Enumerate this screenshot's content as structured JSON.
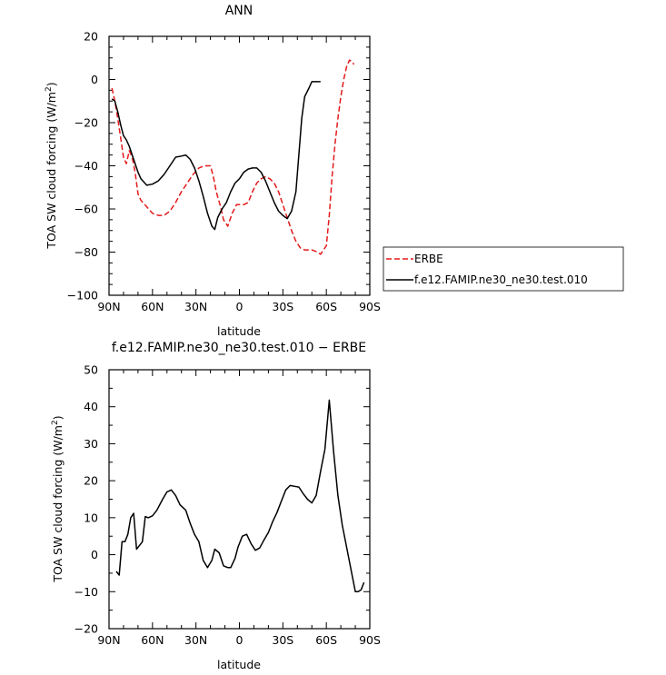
{
  "chart_data": [
    {
      "type": "line",
      "title": "ANN",
      "xlabel": "latitude",
      "ylabel": "TOA SW cloud forcing (W/m",
      "ylabel_sup": "2",
      "ylabel_end": ")",
      "xlim": [
        90,
        -90
      ],
      "ylim": [
        -100,
        20
      ],
      "xticks": [
        90,
        60,
        30,
        0,
        -30,
        -60,
        -90
      ],
      "xtick_labels": [
        "90N",
        "60N",
        "30N",
        "0",
        "30S",
        "60S",
        "90S"
      ],
      "yticks": [
        -100,
        -80,
        -60,
        -40,
        -20,
        0,
        20
      ],
      "ytick_labels": [
        "−100",
        "−80",
        "−60",
        "−40",
        "−20",
        "0",
        "20"
      ],
      "legend": {
        "placement": "right"
      },
      "series": [
        {
          "name": "ERBE",
          "color": "#e31a1c",
          "dash": "dashed",
          "points": [
            [
              88,
              -4
            ],
            [
              86,
              -10
            ],
            [
              84,
              -18
            ],
            [
              82,
              -27
            ],
            [
              80,
              -36
            ],
            [
              78,
              -39
            ],
            [
              76,
              -33
            ],
            [
              74,
              -36
            ],
            [
              72,
              -43
            ],
            [
              70,
              -53
            ],
            [
              68,
              -56
            ],
            [
              64,
              -59
            ],
            [
              60,
              -62
            ],
            [
              56,
              -63
            ],
            [
              52,
              -63
            ],
            [
              48,
              -61
            ],
            [
              44,
              -57
            ],
            [
              40,
              -52
            ],
            [
              36,
              -48
            ],
            [
              32,
              -44
            ],
            [
              28,
              -41
            ],
            [
              24,
              -40
            ],
            [
              20,
              -40
            ],
            [
              18,
              -45
            ],
            [
              16,
              -52
            ],
            [
              13,
              -59
            ],
            [
              11,
              -65
            ],
            [
              8,
              -68
            ],
            [
              5,
              -62
            ],
            [
              2,
              -58
            ],
            [
              0,
              -58
            ],
            [
              -3,
              -58
            ],
            [
              -6,
              -57
            ],
            [
              -9,
              -52
            ],
            [
              -12,
              -48
            ],
            [
              -15,
              -46
            ],
            [
              -18,
              -45
            ],
            [
              -21,
              -46
            ],
            [
              -24,
              -48
            ],
            [
              -27,
              -52
            ],
            [
              -30,
              -58
            ],
            [
              -33,
              -64
            ],
            [
              -36,
              -70
            ],
            [
              -39,
              -75
            ],
            [
              -42,
              -78
            ],
            [
              -45,
              -79
            ],
            [
              -50,
              -79
            ],
            [
              -54,
              -80
            ],
            [
              -56,
              -81
            ],
            [
              -58,
              -79
            ],
            [
              -60,
              -77
            ],
            [
              -62,
              -63
            ],
            [
              -64,
              -45
            ],
            [
              -66,
              -30
            ],
            [
              -68,
              -18
            ],
            [
              -70,
              -8
            ],
            [
              -72,
              0
            ],
            [
              -74,
              6
            ],
            [
              -76,
              9
            ],
            [
              -78,
              8
            ],
            [
              -79,
              7
            ]
          ]
        },
        {
          "name": "f.e12.FAMIP.ne30_ne30.test.010",
          "color": "#000000",
          "dash": "solid",
          "points": [
            [
              88,
              -9
            ],
            [
              86,
              -10
            ],
            [
              84,
              -15
            ],
            [
              82,
              -21
            ],
            [
              80,
              -26
            ],
            [
              78,
              -28
            ],
            [
              76,
              -31
            ],
            [
              74,
              -35
            ],
            [
              72,
              -39
            ],
            [
              70,
              -43
            ],
            [
              68,
              -46
            ],
            [
              64,
              -49
            ],
            [
              60,
              -48.5
            ],
            [
              56,
              -47
            ],
            [
              52,
              -44
            ],
            [
              48,
              -40
            ],
            [
              44,
              -36
            ],
            [
              40,
              -35.5
            ],
            [
              37,
              -35
            ],
            [
              34,
              -37
            ],
            [
              31,
              -41
            ],
            [
              28,
              -47
            ],
            [
              25,
              -54
            ],
            [
              22,
              -62
            ],
            [
              19,
              -68
            ],
            [
              17,
              -69.5
            ],
            [
              15,
              -64
            ],
            [
              12,
              -60
            ],
            [
              9,
              -57
            ],
            [
              6,
              -52
            ],
            [
              3,
              -48
            ],
            [
              0,
              -46
            ],
            [
              -3,
              -43
            ],
            [
              -6,
              -41.5
            ],
            [
              -9,
              -41
            ],
            [
              -12,
              -41
            ],
            [
              -15,
              -43
            ],
            [
              -18,
              -47
            ],
            [
              -21,
              -52
            ],
            [
              -24,
              -57
            ],
            [
              -27,
              -61
            ],
            [
              -30,
              -63
            ],
            [
              -33,
              -64.5
            ],
            [
              -36,
              -61
            ],
            [
              -39,
              -52
            ],
            [
              -41,
              -35
            ],
            [
              -43,
              -18
            ],
            [
              -45,
              -8
            ],
            [
              -48,
              -4
            ],
            [
              -50,
              -1
            ],
            [
              -53,
              -1
            ],
            [
              -56,
              -1
            ]
          ]
        }
      ]
    },
    {
      "type": "line",
      "title": "f.e12.FAMIP.ne30_ne30.test.010 − ERBE",
      "xlabel": "latitude",
      "ylabel": "TOA SW cloud forcing (W/m",
      "ylabel_sup": "2",
      "ylabel_end": ")",
      "xlim": [
        90,
        -90
      ],
      "ylim": [
        -20,
        50
      ],
      "xticks": [
        90,
        60,
        30,
        0,
        -30,
        -60,
        -90
      ],
      "xtick_labels": [
        "90N",
        "60N",
        "30N",
        "0",
        "30S",
        "60S",
        "90S"
      ],
      "yticks": [
        -20,
        -10,
        0,
        10,
        20,
        30,
        40,
        50
      ],
      "ytick_labels": [
        "−20",
        "−10",
        "0",
        "10",
        "20",
        "30",
        "40",
        "50"
      ],
      "series": [
        {
          "color": "#000000",
          "dash": "solid",
          "points": [
            [
              85,
              -4.5
            ],
            [
              83,
              -5.5
            ],
            [
              81,
              3.5
            ],
            [
              79,
              3.5
            ],
            [
              77,
              5.5
            ],
            [
              75,
              10
            ],
            [
              73,
              11.2
            ],
            [
              71,
              1.5
            ],
            [
              69,
              2.5
            ],
            [
              67,
              3.5
            ],
            [
              65,
              10.3
            ],
            [
              63,
              10
            ],
            [
              60,
              10.5
            ],
            [
              57,
              12
            ],
            [
              53,
              15
            ],
            [
              50,
              17
            ],
            [
              47,
              17.5
            ],
            [
              44,
              16
            ],
            [
              41,
              13.5
            ],
            [
              37,
              12
            ],
            [
              34,
              8.5
            ],
            [
              31,
              5.5
            ],
            [
              28,
              3.5
            ],
            [
              25,
              -1.5
            ],
            [
              22,
              -3.5
            ],
            [
              19,
              -1.5
            ],
            [
              17,
              1.5
            ],
            [
              14,
              0.5
            ],
            [
              11,
              -3
            ],
            [
              8,
              -3.5
            ],
            [
              6,
              -3.5
            ],
            [
              3,
              -1
            ],
            [
              1,
              2
            ],
            [
              -2,
              5
            ],
            [
              -5,
              5.5
            ],
            [
              -8,
              3
            ],
            [
              -11,
              1.2
            ],
            [
              -14,
              1.8
            ],
            [
              -17,
              4
            ],
            [
              -20,
              6
            ],
            [
              -23,
              9
            ],
            [
              -26,
              11.5
            ],
            [
              -29,
              14.5
            ],
            [
              -32,
              17.5
            ],
            [
              -35,
              18.7
            ],
            [
              -38,
              18.5
            ],
            [
              -41,
              18.3
            ],
            [
              -44,
              16.5
            ],
            [
              -47,
              15
            ],
            [
              -50,
              14
            ],
            [
              -53,
              16
            ],
            [
              -56,
              22.5
            ],
            [
              -59,
              28.5
            ],
            [
              -62,
              41.8
            ],
            [
              -65,
              28
            ],
            [
              -68,
              16
            ],
            [
              -71,
              8
            ],
            [
              -74,
              2
            ],
            [
              -77,
              -4
            ],
            [
              -80,
              -10
            ],
            [
              -82,
              -10
            ],
            [
              -84,
              -9.5
            ],
            [
              -86,
              -7.5
            ]
          ]
        }
      ]
    }
  ]
}
